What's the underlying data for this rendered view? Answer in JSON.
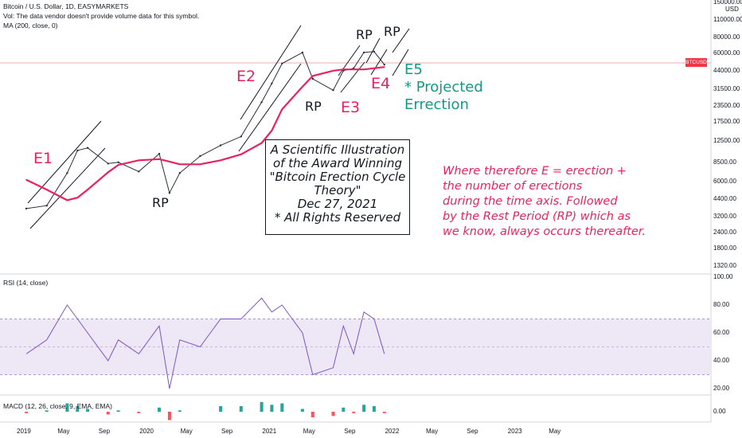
{
  "header": {
    "symbol_line": "Bitcoin / U.S. Dollar, 1D, EASYMARKETS",
    "vol_line": "Vol: The data vendor doesn't provide volume data for this symbol.",
    "ma_line": "MA (200, close, 0)"
  },
  "price_axis": {
    "currency": "USD",
    "ticks": [
      "150000.00",
      "110000.00",
      "80000.00",
      "60000.00",
      "44000.00",
      "31500.00",
      "23500.00",
      "17500.00",
      "12500.00",
      "8500.00",
      "6000.00",
      "4400.00",
      "3200.00",
      "2400.00",
      "1800.00",
      "1320.00"
    ],
    "badge": "BTCUSD"
  },
  "rsi_panel": {
    "label": "RSI (14, close)",
    "ticks": [
      "100.00",
      "80.00",
      "60.00",
      "40.00",
      "20.00"
    ]
  },
  "macd_panel": {
    "label": "MACD (12, 26, close, 9, EMA, EMA)",
    "ticks": [
      "0.00"
    ]
  },
  "time_axis": {
    "ticks": [
      "2019",
      "May",
      "Sep",
      "2020",
      "May",
      "Sep",
      "2021",
      "May",
      "Sep",
      "2022",
      "May",
      "Sep",
      "2023",
      "May"
    ]
  },
  "annotations": {
    "e1": "E1",
    "e2": "E2",
    "e3": "E3",
    "e4": "E4",
    "e5": "E5",
    "rp1": "RP",
    "rp2": "RP",
    "rp3": "RP",
    "rp4": "RP",
    "projected": "* Projected",
    "erection": "Errection"
  },
  "illustration_box": {
    "lines": [
      "A Scientific Illustration",
      "of the Award Winning",
      "\"Bitcoin Erection Cycle",
      "Theory\"",
      "Dec 27, 2021",
      "* All Rights Reserved"
    ]
  },
  "description": {
    "lines": [
      "Where therefore E = erection +",
      "the number of erections",
      "during the time axis. Followed",
      "by the Rest Period (RP) which as",
      "we know, always  occurs thereafter."
    ]
  },
  "colors": {
    "price_line": "#2a2e39",
    "ma_line": "#e8235f",
    "rsi_line": "#7e57c2",
    "rsi_band": "#ede7f6",
    "annotation_pink": "#e8235f",
    "annotation_teal": "#139a86",
    "macd_up": "#26a69a",
    "macd_down": "#ff5252"
  },
  "chart_data": {
    "type": "line",
    "title": "Bitcoin / U.S. Dollar, 1D, EASYMARKETS",
    "y_scale": "log",
    "ylim": [
      1320,
      150000
    ],
    "x": [
      "2019-01",
      "2019-03",
      "2019-05",
      "2019-06",
      "2019-07",
      "2019-09",
      "2019-10",
      "2019-12",
      "2020-02",
      "2020-03",
      "2020-04",
      "2020-06",
      "2020-08",
      "2020-10",
      "2020-12",
      "2021-01",
      "2021-02",
      "2021-04",
      "2021-05",
      "2021-07",
      "2021-08",
      "2021-09",
      "2021-10",
      "2021-11",
      "2021-12"
    ],
    "series": [
      {
        "name": "BTCUSD",
        "values": [
          3700,
          3900,
          7000,
          10500,
          11000,
          8300,
          8500,
          7200,
          9900,
          4900,
          7000,
          9500,
          11500,
          13500,
          25000,
          35000,
          50000,
          61000,
          38000,
          31000,
          44000,
          46000,
          61000,
          62000,
          49000
        ]
      },
      {
        "name": "MA (200, close, 0)",
        "values": [
          6200,
          5200,
          4300,
          4500,
          5200,
          7100,
          8100,
          8800,
          9000,
          8600,
          8200,
          8200,
          8800,
          9800,
          12000,
          15000,
          22000,
          33000,
          40000,
          44000,
          45000,
          45000,
          45000,
          46000,
          47000
        ]
      }
    ],
    "rsi": [
      45,
      55,
      80,
      70,
      60,
      40,
      55,
      45,
      65,
      20,
      55,
      50,
      70,
      70,
      85,
      75,
      80,
      60,
      30,
      35,
      65,
      45,
      75,
      70,
      45
    ],
    "rsi_bands": [
      70,
      30
    ]
  }
}
